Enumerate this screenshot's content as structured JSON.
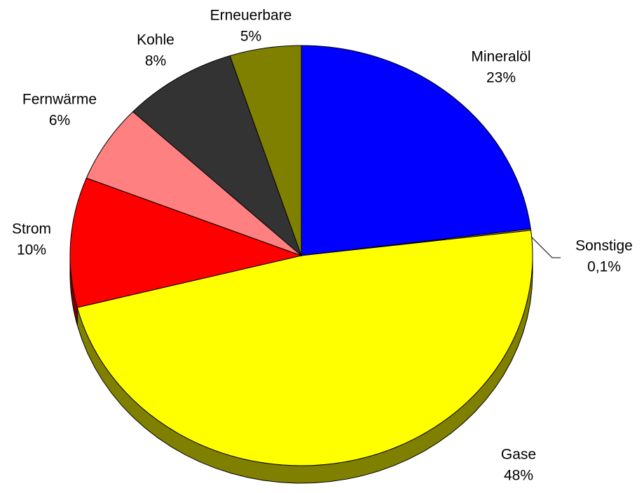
{
  "chart_data": {
    "type": "pie",
    "categories": [
      "Mineralöl",
      "Sonstige",
      "Gase",
      "Strom",
      "Fernwärme",
      "Kohle",
      "Erneuerbare"
    ],
    "values": [
      23,
      0.1,
      48,
      10,
      6,
      8,
      5
    ],
    "value_labels": [
      "23%",
      "0,1%",
      "48%",
      "10%",
      "6%",
      "8%",
      "5%"
    ],
    "colors": [
      "#0000ff",
      "#ffcc33",
      "#ffff00",
      "#ff0000",
      "#ff8080",
      "#333333",
      "#808000"
    ]
  }
}
